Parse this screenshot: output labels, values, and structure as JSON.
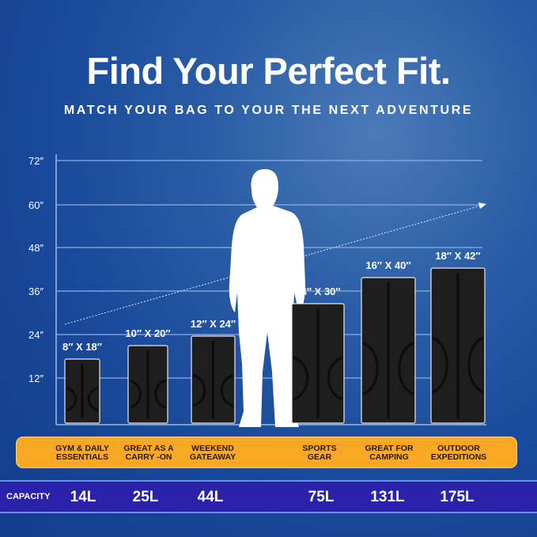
{
  "title": "Find Your Perfect Fit.",
  "subtitle": "MATCH YOUR BAG TO YOUR THE NEXT ADVENTURE",
  "axis_ticks": [
    "72″",
    "60″",
    "48″",
    "36″",
    "24″",
    "12″"
  ],
  "bags": [
    {
      "size": "8″ X 18″",
      "use": [
        "GYM & DAILY",
        "ESSENTIALS"
      ],
      "capacity": "14L"
    },
    {
      "size": "10″ X 20″",
      "use": [
        "GREAT AS A",
        "CARRY -ON"
      ],
      "capacity": "25L"
    },
    {
      "size": "12″ X 24″",
      "use": [
        "WEEKEND",
        "GATEAWAY"
      ],
      "capacity": "44L"
    },
    {
      "size": "14″ X 30″",
      "use": [
        "SPORTS",
        "GEAR"
      ],
      "capacity": "75L"
    },
    {
      "size": "16″ X 40″",
      "use": [
        "GREAT FOR",
        "CAMPING"
      ],
      "capacity": "131L"
    },
    {
      "size": "18″ X 42″",
      "use": [
        "OUTDOOR",
        "EXPEDITIONS"
      ],
      "capacity": "175L"
    }
  ],
  "capacity_label": "CAPACITY",
  "colors": {
    "background": "#1a4a9a",
    "band": "#f9a825",
    "capacity_bar": "#2a22a8",
    "bag": "#1e1e1e"
  }
}
